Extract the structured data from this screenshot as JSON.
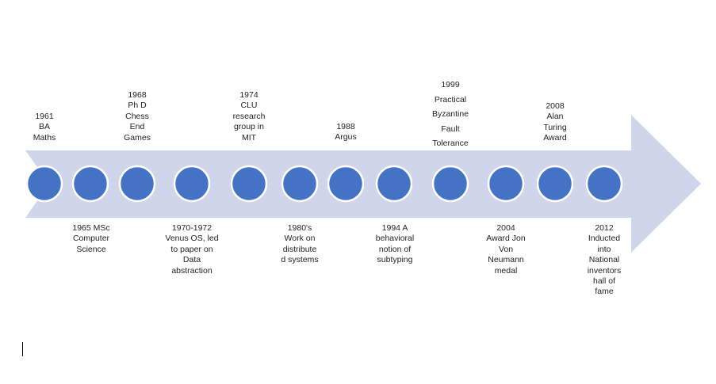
{
  "colors": {
    "arrow": "#cfd5ea",
    "dot": "#4472c4",
    "dot_border": "#ffffff",
    "text": "#222222"
  },
  "milestones": [
    {
      "label": "1961\nBA\nMaths"
    },
    {
      "label": "1965 MSc\nComputer\nScience"
    },
    {
      "label": "1968\nPh D\nChess\nEnd\nGames"
    },
    {
      "label": "1970-1972\nVenus OS, led\nto paper on\nData\nabstraction"
    },
    {
      "label": "1974\nCLU\nresearch\ngroup in\nMIT"
    },
    {
      "label": "1980's\nWork on\ndistribute\nd systems"
    },
    {
      "label": "1988\nArgus"
    },
    {
      "label": "1994 A\nbehavioral\nnotion of\nsubtyping"
    },
    {
      "label": "1999\nPractical\nByzantine\nFault\nTolerance"
    },
    {
      "label": "2004\nAward Jon\nVon\nNeumann\nmedal"
    },
    {
      "label": "2008\nAlan\nTuring\nAward"
    },
    {
      "label": "2012\nInducted\ninto\nNational\ninventors\nhall of\nfame"
    }
  ]
}
